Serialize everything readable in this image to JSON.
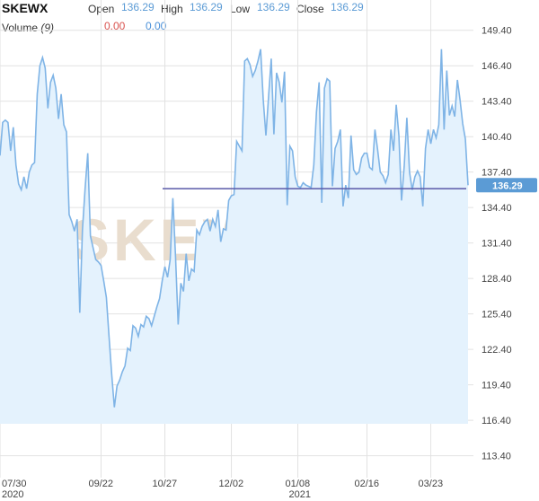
{
  "header": {
    "ticker": "SKEWX",
    "open_label": "Open",
    "open_value": "136.29",
    "high_label": "High",
    "high_value": "136.29",
    "low_label": "Low",
    "low_value": "136.29",
    "close_label": "Close",
    "close_value": "136.29",
    "volume_label": "Volume",
    "volume_period": "(9)",
    "volume_value_1": "0.00",
    "volume_value_2": "0.00"
  },
  "colors": {
    "line": "#7fb4e6",
    "fill": "#e4f2fd",
    "reference_line": "#5a5aa8",
    "price_badge": "#5b9bd5",
    "grid": "#e2e2e2",
    "volume_value_1": "#d9534f",
    "volume_value_2": "#4a90d9"
  },
  "chart_data": {
    "type": "area",
    "watermark": "SKEW",
    "y_ticks": [
      "113.40",
      "116.40",
      "119.40",
      "122.40",
      "125.40",
      "128.40",
      "131.40",
      "134.40",
      "137.40",
      "140.40",
      "143.40",
      "146.40",
      "149.40"
    ],
    "ylim": [
      112.0,
      150.9
    ],
    "x_ticks": [
      {
        "label": "07/30",
        "sub": "2020",
        "index": 0
      },
      {
        "label": "09/22",
        "sub": "",
        "index": 38
      },
      {
        "label": "10/27",
        "sub": "",
        "index": 62
      },
      {
        "label": "12/02",
        "sub": "",
        "index": 87
      },
      {
        "label": "01/08",
        "sub": "2021",
        "index": 112
      },
      {
        "label": "02/16",
        "sub": "",
        "index": 138
      },
      {
        "label": "03/23",
        "sub": "",
        "index": 162
      }
    ],
    "current_value": "136.29",
    "reference_level": 136.0,
    "values": [
      138.8,
      141.6,
      141.8,
      141.6,
      139.2,
      141.2,
      138.0,
      136.4,
      135.9,
      137.0,
      136.0,
      137.4,
      138.0,
      138.2,
      144.0,
      146.4,
      147.1,
      146.2,
      142.8,
      145.0,
      145.6,
      144.5,
      141.9,
      144.0,
      141.4,
      140.8,
      133.8,
      133.2,
      132.4,
      133.4,
      125.5,
      132.5,
      136.0,
      139.0,
      132.0,
      131.0,
      130.0,
      129.8,
      129.5,
      128.2,
      126.8,
      123.5,
      120.3,
      117.5,
      119.3,
      119.8,
      120.5,
      121.0,
      122.5,
      122.3,
      124.4,
      124.2,
      123.5,
      124.5,
      124.3,
      125.2,
      125.0,
      124.4,
      125.2,
      126.0,
      126.7,
      128.2,
      129.4,
      128.5,
      130.0,
      135.2,
      130.3,
      124.5,
      128.0,
      127.3,
      130.5,
      128.2,
      129.2,
      129.0,
      132.5,
      132.1,
      132.8,
      133.2,
      133.4,
      132.4,
      133.4,
      132.8,
      134.2,
      131.5,
      132.6,
      132.5,
      135.0,
      135.4,
      135.5,
      140.0,
      139.6,
      139.2,
      146.8,
      147.0,
      146.5,
      145.5,
      146.0,
      146.8,
      147.8,
      143.5,
      140.5,
      143.8,
      147.0,
      140.6,
      145.8,
      145.0,
      143.3,
      145.9,
      134.6,
      139.6,
      139.2,
      137.0,
      136.2,
      136.1,
      136.5,
      136.3,
      136.2,
      136.1,
      138.0,
      142.5,
      145.0,
      134.8,
      144.5,
      145.3,
      145.1,
      136.2,
      139.4,
      140.0,
      141.0,
      134.5,
      136.3,
      135.2,
      140.5,
      137.6,
      137.2,
      137.4,
      138.6,
      139.0,
      139.0,
      137.8,
      137.6,
      141.0,
      139.3,
      137.4,
      137.1,
      136.5,
      137.2,
      141.0,
      139.2,
      143.1,
      140.5,
      135.0,
      137.9,
      142.0,
      137.4,
      135.9,
      137.0,
      137.5,
      137.0,
      134.5,
      139.4,
      141.0,
      139.8,
      141.0,
      140.3,
      141.4,
      147.8,
      141.0,
      146.0,
      142.2,
      143.0,
      142.1,
      145.2,
      143.5,
      141.5,
      140.2,
      136.29
    ]
  }
}
